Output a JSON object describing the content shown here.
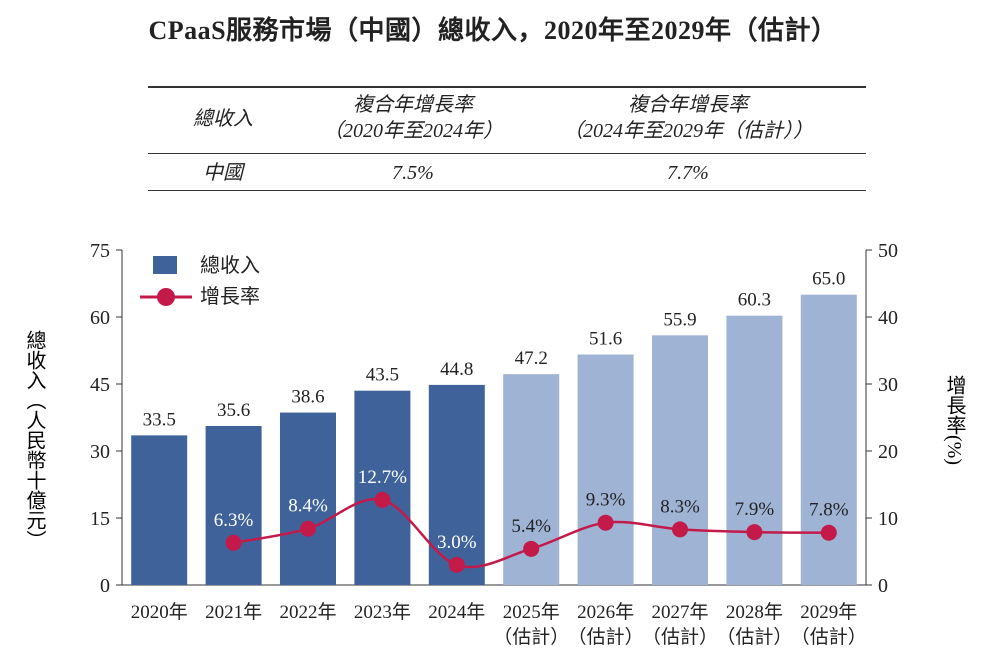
{
  "title": "CPaaS服務市場（中國）總收入，2020年至2029年（估計）",
  "cagr_table": {
    "headers": [
      "總收入",
      "複合年增長率",
      "（2020年至2024年）",
      "複合年增長率",
      "（2024年至2029年（估計））"
    ],
    "row": {
      "label": "中國",
      "values": [
        "7.5%",
        "7.7%"
      ]
    }
  },
  "chart_data": {
    "type": "bar",
    "categories": [
      "2020年",
      "2021年",
      "2022年",
      "2023年",
      "2024年",
      "2025年",
      "2026年",
      "2027年",
      "2028年",
      "2029年"
    ],
    "category_sublabels": [
      "",
      "",
      "",
      "",
      "",
      "（估計）",
      "（估計）",
      "（估計）",
      "（估計）",
      "（估計）"
    ],
    "series": [
      {
        "name": "總收入",
        "type": "bar",
        "axis": "left",
        "values": [
          33.5,
          35.6,
          38.6,
          43.5,
          44.8,
          47.2,
          51.6,
          55.9,
          60.3,
          65.0
        ],
        "labels": [
          "33.5",
          "35.6",
          "38.6",
          "43.5",
          "44.8",
          "47.2",
          "51.6",
          "55.9",
          "60.3",
          "65.0"
        ]
      },
      {
        "name": "增長率",
        "type": "line",
        "axis": "right",
        "values": [
          null,
          6.3,
          8.4,
          12.7,
          3.0,
          5.4,
          9.3,
          8.3,
          7.9,
          7.8
        ],
        "labels": [
          "",
          "6.3%",
          "8.4%",
          "12.7%",
          "3.0%",
          "5.4%",
          "9.3%",
          "8.3%",
          "7.9%",
          "7.8%"
        ]
      }
    ],
    "ylabel": "總收入（人民幣十億元）",
    "y2label": "增長率(%)",
    "ylim": [
      0,
      75
    ],
    "yticks": [
      0,
      15,
      30,
      45,
      60,
      75
    ],
    "y2lim": [
      0,
      50
    ],
    "y2ticks": [
      0,
      10,
      20,
      30,
      40,
      50
    ],
    "grid": false,
    "legend_position": "top-left",
    "colors": {
      "actual_bar": "#3f629a",
      "forecast_bar": "#9fb3d5",
      "line": "#c41a4a"
    }
  }
}
